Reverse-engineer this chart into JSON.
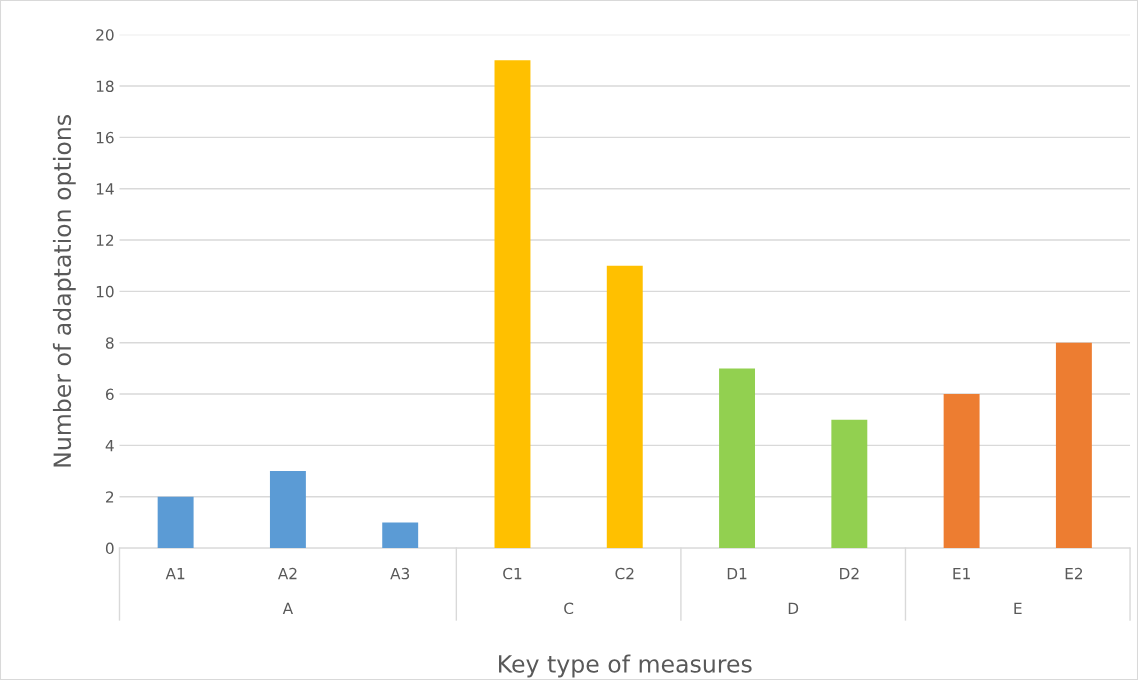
{
  "chart_data": {
    "type": "bar",
    "xlabel": "Key type of measures",
    "ylabel": "Number of adaptation options",
    "categories": [
      "A1",
      "A2",
      "A3",
      "C1",
      "C2",
      "D1",
      "D2",
      "E1",
      "E2"
    ],
    "values": [
      2,
      3,
      1,
      19,
      11,
      7,
      5,
      6,
      8
    ],
    "colors": [
      "#5b9bd5",
      "#5b9bd5",
      "#5b9bd5",
      "#ffc000",
      "#ffc000",
      "#92d050",
      "#92d050",
      "#ed7d31",
      "#ed7d31"
    ],
    "annotations": [
      "A",
      "C",
      "D",
      "E"
    ],
    "ylim": [
      0,
      20
    ],
    "yticks": [
      0,
      2,
      4,
      6,
      8,
      10,
      12,
      14,
      16,
      18,
      20
    ],
    "grid": "y"
  }
}
